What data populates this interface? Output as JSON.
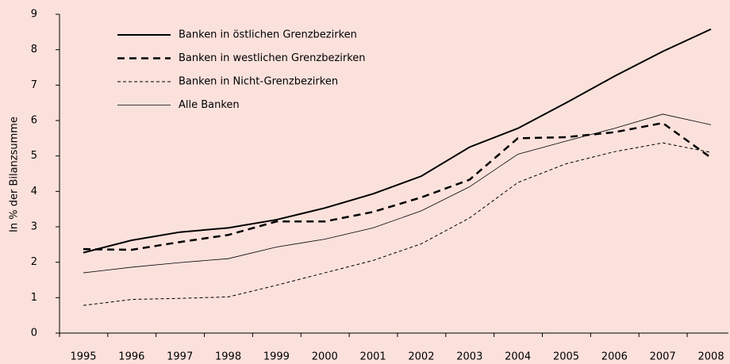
{
  "chart_data": {
    "type": "line",
    "y_label": "In % der Bilanzsumme",
    "categories": [
      "1995",
      "1996",
      "1997",
      "1998",
      "1999",
      "2000",
      "2001",
      "2002",
      "2003",
      "2004",
      "2005",
      "2006",
      "2007",
      "2008"
    ],
    "series": [
      {
        "name": "Banken in östlichen Grenzbezirken",
        "color": "#000000",
        "width": 2,
        "dash": "solid",
        "values": [
          2.27,
          2.62,
          2.85,
          2.97,
          3.2,
          3.53,
          3.93,
          4.43,
          5.25,
          5.78,
          6.5,
          7.25,
          7.95,
          8.58
        ]
      },
      {
        "name": "Banken in westlichen Grenzbezirken",
        "color": "#000000",
        "width": 2.5,
        "dash": "dashed",
        "values": [
          2.37,
          2.35,
          2.57,
          2.77,
          3.15,
          3.15,
          3.42,
          3.83,
          4.33,
          5.5,
          5.53,
          5.67,
          5.93,
          4.95
        ]
      },
      {
        "name": "Banken in Nicht-Grenzbezirken",
        "color": "#000000",
        "width": 1,
        "dash": "dashed",
        "values": [
          0.78,
          0.95,
          0.98,
          1.02,
          1.35,
          1.7,
          2.05,
          2.52,
          3.25,
          4.25,
          4.78,
          5.12,
          5.37,
          5.1
        ]
      },
      {
        "name": "Alle Banken",
        "color": "#000000",
        "width": 0.8,
        "dash": "solid",
        "values": [
          1.7,
          1.86,
          1.99,
          2.1,
          2.43,
          2.65,
          2.97,
          3.45,
          4.13,
          5.05,
          5.42,
          5.78,
          6.18,
          5.88
        ]
      }
    ],
    "ylim": [
      0,
      9
    ],
    "yticks": [
      0,
      1,
      2,
      3,
      4,
      5,
      6,
      7,
      8,
      9
    ],
    "grid": false,
    "legend": "upper left"
  }
}
